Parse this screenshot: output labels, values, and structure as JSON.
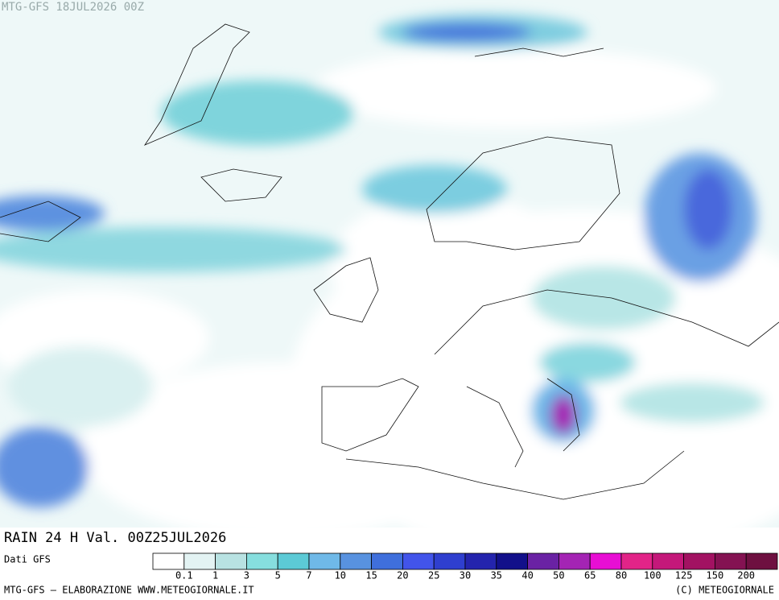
{
  "header": {
    "title": "MTG-GFS 18JUL2026 00Z"
  },
  "caption": "RAIN 24 H Val. 00Z25JUL2026",
  "legend": {
    "title": "Dati GFS",
    "colors": [
      "#ffffff",
      "#e3f3f3",
      "#b8e2e2",
      "#86dede",
      "#5ccad6",
      "#6fb9e8",
      "#5892e0",
      "#3f6fdc",
      "#4254ea",
      "#2f3fcf",
      "#2424ad",
      "#12108a",
      "#6a22a4",
      "#a424b4",
      "#e80ed4",
      "#e22488",
      "#c4187a",
      "#a21262",
      "#841252",
      "#6e1040"
    ],
    "labels": [
      0.1,
      1,
      3,
      5,
      7,
      10,
      15,
      20,
      25,
      30,
      35,
      40,
      50,
      65,
      80,
      100,
      125,
      150,
      200
    ]
  },
  "footer": {
    "left": "MTG-GFS — ELABORAZIONE WWW.METEOGIORNALE.IT",
    "right": "(C) METEOGIORNALE"
  }
}
